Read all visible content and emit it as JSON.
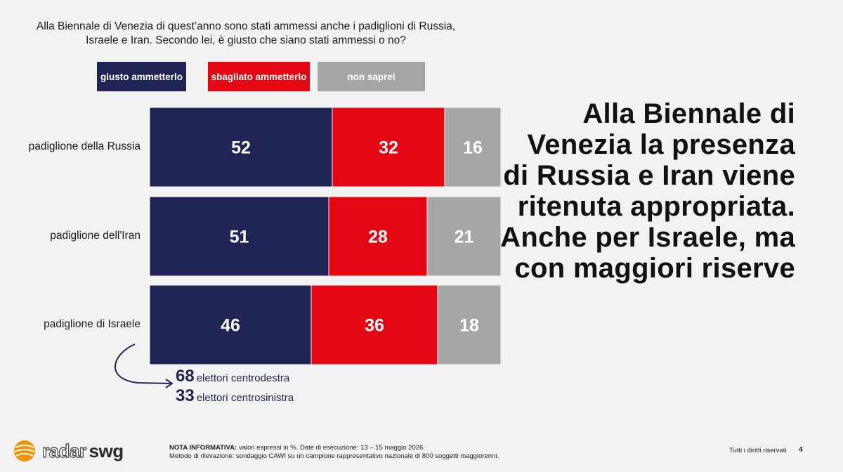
{
  "question": "Alla Biennale di Venezia di quest’anno sono stati ammessi anche i padiglioni di Russia, Israele e Iran. Secondo lei, è giusto che siano stati ammessi o no?",
  "legend": [
    {
      "label": "giusto ammetterlo",
      "color": "#1f2454"
    },
    {
      "label": "sbagliato ammetterlo",
      "color": "#e30613"
    },
    {
      "label": "non saprei",
      "color": "#a6a6a6"
    }
  ],
  "chart_data": {
    "type": "bar",
    "orientation": "horizontal-stacked",
    "categories": [
      "padiglione della Russia",
      "padiglione dell'Iran",
      "padiglione di Israele"
    ],
    "series": [
      {
        "name": "giusto ammetterlo",
        "values": [
          52,
          51,
          46
        ],
        "color": "#1f2454"
      },
      {
        "name": "sbagliato ammetterlo",
        "values": [
          32,
          28,
          36
        ],
        "color": "#e30613"
      },
      {
        "name": "non saprei",
        "values": [
          16,
          21,
          18
        ],
        "color": "#a6a6a6"
      }
    ],
    "xlim": [
      0,
      100
    ],
    "grid": false,
    "legend_position": "top"
  },
  "annotation": [
    {
      "number": "68",
      "text": "elettori centrodestra"
    },
    {
      "number": "33",
      "text": "elettori centrosinistra"
    }
  ],
  "headline": "Alla Biennale di Venezia la presenza di Russia e Iran viene ritenuta appropriata. Anche per Israele, ma con maggiori riserve",
  "footer": {
    "note_label": "NOTA INFORMATIVA:",
    "note_text": "valori espressi in %. Date di esecuzione: 13 – 15 maggio 2026.",
    "method": "Metodo di rilevazione: sondaggio CAWI su un campione rappresentativo nazionale di 800 soggetti maggiorenni.",
    "rights": "Tutti i diritti riservati",
    "page": "4"
  },
  "logo": {
    "part1": "radar",
    "part2": "swg"
  }
}
